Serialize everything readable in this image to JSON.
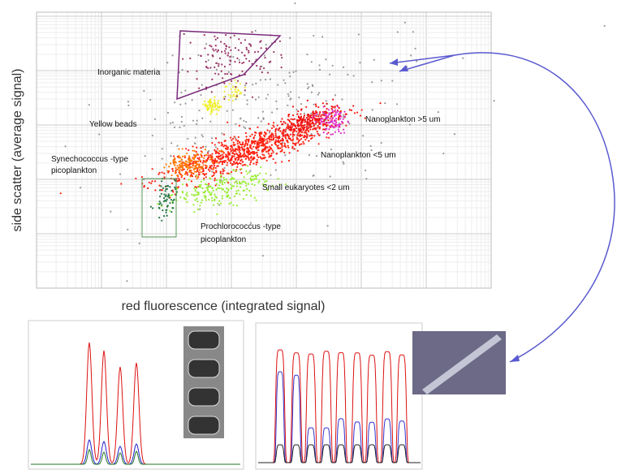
{
  "scatter": {
    "x_label": "red fluorescence (integrated signal)",
    "y_label": "side scatter (average signal)",
    "annotations": [
      "Inorganic materia",
      "Yellow beads",
      "Synechococcus -type",
      "picoplankton",
      "Small eukaryotes <2 um",
      "Prochlorococcus -type",
      "picoplankton",
      "Nanoplankton <5 um",
      "Nanoplankton  >5 um"
    ]
  }
}
